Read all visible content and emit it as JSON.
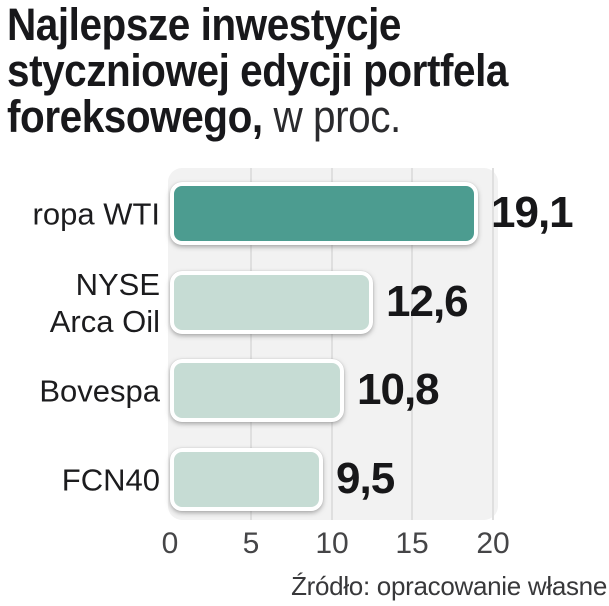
{
  "title": {
    "line1": "Najlepsze inwestycje",
    "line2": "styczniowej edycji portfela",
    "line3_bold": "foreksowego,",
    "line3_light": " w proc."
  },
  "chart_data": {
    "type": "bar",
    "orientation": "horizontal",
    "title": "Najlepsze inwestycje styczniowej edycji portfela foreksowego",
    "unit_label": "w proc.",
    "categories": [
      "ropa WTI",
      "NYSE\nArca Oil",
      "Bovespa",
      "FCN40"
    ],
    "values": [
      19.1,
      12.6,
      10.8,
      9.5
    ],
    "value_labels": [
      "19,1",
      "12,6",
      "10,8",
      "9,5"
    ],
    "x_ticks": [
      0,
      5,
      10,
      15,
      20
    ],
    "x_tick_labels": [
      "0",
      "5",
      "10",
      "15",
      "20"
    ],
    "xlim": [
      0,
      20
    ],
    "grid": "vertical",
    "legend": "none",
    "bar_colors": [
      "#4c9c90",
      "#c6dcd4",
      "#c6dcd4",
      "#c6dcd4"
    ],
    "highlight_color": "#4c9c90",
    "base_color": "#c6dcd4",
    "plot_background": "#f2f2f2",
    "gridline_color": "#dfdfdf"
  },
  "source": "Źródło: opracowanie własne"
}
